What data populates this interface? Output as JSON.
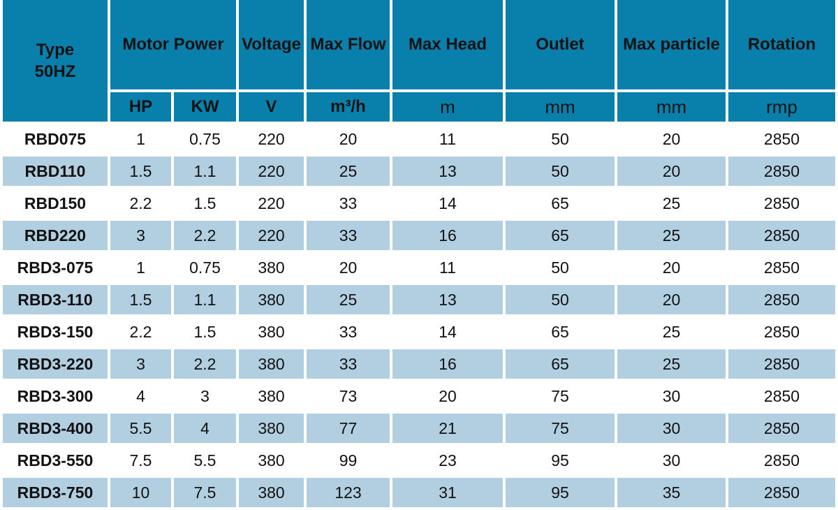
{
  "table": {
    "header": {
      "type_label": "Type\n50HZ",
      "groups": [
        {
          "label": "Motor Power"
        },
        {
          "label": "Voltage"
        },
        {
          "label": "Max Flow"
        },
        {
          "label": "Max Head"
        },
        {
          "label": "Outlet"
        },
        {
          "label": "Max particle"
        },
        {
          "label": "Rotation"
        }
      ],
      "units": [
        "HP",
        "KW",
        "V",
        "m³/h",
        "m",
        "mm",
        "mm",
        "rmp"
      ]
    },
    "rows": [
      [
        "RBD075",
        "1",
        "0.75",
        "220",
        "20",
        "11",
        "50",
        "20",
        "2850"
      ],
      [
        "RBD110",
        "1.5",
        "1.1",
        "220",
        "25",
        "13",
        "50",
        "20",
        "2850"
      ],
      [
        "RBD150",
        "2.2",
        "1.5",
        "220",
        "33",
        "14",
        "65",
        "25",
        "2850"
      ],
      [
        "RBD220",
        "3",
        "2.2",
        "220",
        "33",
        "16",
        "65",
        "25",
        "2850"
      ],
      [
        "RBD3-075",
        "1",
        "0.75",
        "380",
        "20",
        "11",
        "50",
        "20",
        "2850"
      ],
      [
        "RBD3-110",
        "1.5",
        "1.1",
        "380",
        "25",
        "13",
        "50",
        "20",
        "2850"
      ],
      [
        "RBD3-150",
        "2.2",
        "1.5",
        "380",
        "33",
        "14",
        "65",
        "25",
        "2850"
      ],
      [
        "RBD3-220",
        "3",
        "2.2",
        "380",
        "33",
        "16",
        "65",
        "25",
        "2850"
      ],
      [
        "RBD3-300",
        "4",
        "3",
        "380",
        "73",
        "20",
        "75",
        "30",
        "2850"
      ],
      [
        "RBD3-400",
        "5.5",
        "4",
        "380",
        "77",
        "21",
        "75",
        "30",
        "2850"
      ],
      [
        "RBD3-550",
        "7.5",
        "5.5",
        "380",
        "99",
        "23",
        "95",
        "30",
        "2850"
      ],
      [
        "RBD3-750",
        "10",
        "7.5",
        "380",
        "123",
        "31",
        "95",
        "35",
        "2850"
      ]
    ]
  },
  "colors": {
    "header_bg": "#0880ab",
    "row_alt_bg": "#b2cfe1",
    "row_bg": "#ffffff",
    "text": "#121212"
  },
  "chart_data": {
    "type": "table",
    "title": "Pump specification table (Type 50HZ)",
    "columns": [
      "Type 50HZ",
      "Motor Power HP",
      "Motor Power KW",
      "Voltage V",
      "Max Flow m³/h",
      "Max Head m",
      "Outlet mm",
      "Max particle mm",
      "Rotation rmp"
    ],
    "rows": [
      [
        "RBD075",
        "1",
        "0.75",
        "220",
        "20",
        "11",
        "50",
        "20",
        "2850"
      ],
      [
        "RBD110",
        "1.5",
        "1.1",
        "220",
        "25",
        "13",
        "50",
        "20",
        "2850"
      ],
      [
        "RBD150",
        "2.2",
        "1.5",
        "220",
        "33",
        "14",
        "65",
        "25",
        "2850"
      ],
      [
        "RBD220",
        "3",
        "2.2",
        "220",
        "33",
        "16",
        "65",
        "25",
        "2850"
      ],
      [
        "RBD3-075",
        "1",
        "0.75",
        "380",
        "20",
        "11",
        "50",
        "20",
        "2850"
      ],
      [
        "RBD3-110",
        "1.5",
        "1.1",
        "380",
        "25",
        "13",
        "50",
        "20",
        "2850"
      ],
      [
        "RBD3-150",
        "2.2",
        "1.5",
        "380",
        "33",
        "14",
        "65",
        "25",
        "2850"
      ],
      [
        "RBD3-220",
        "3",
        "2.2",
        "380",
        "33",
        "16",
        "65",
        "25",
        "2850"
      ],
      [
        "RBD3-300",
        "4",
        "3",
        "380",
        "73",
        "20",
        "75",
        "30",
        "2850"
      ],
      [
        "RBD3-400",
        "5.5",
        "4",
        "380",
        "77",
        "21",
        "75",
        "30",
        "2850"
      ],
      [
        "RBD3-550",
        "7.5",
        "5.5",
        "380",
        "99",
        "23",
        "95",
        "30",
        "2850"
      ],
      [
        "RBD3-750",
        "10",
        "7.5",
        "380",
        "123",
        "31",
        "95",
        "35",
        "2850"
      ]
    ],
    "layout": {
      "header_rows": 2,
      "alternating_row_colors": true,
      "grid": "white 4px cell spacing"
    }
  }
}
